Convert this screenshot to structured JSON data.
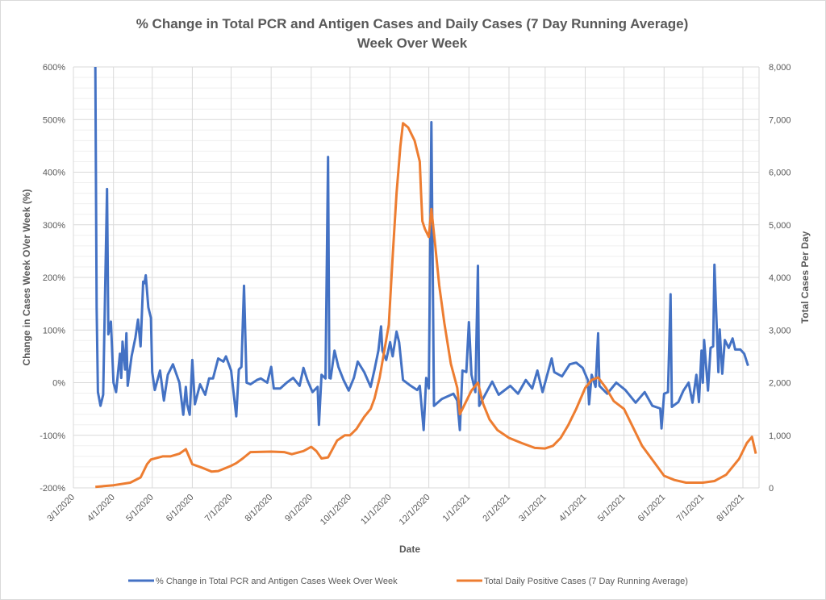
{
  "chart_data": {
    "type": "line",
    "title": "% Change in Total PCR and Antigen Cases and Daily Cases (7 Day Running Average)",
    "subtitle": "Week Over Week",
    "xlabel": "Date",
    "ylabel_left": "Change in Cases Week OVer Week (%)",
    "ylabel_right": "Total Cases Per Day",
    "x_ticks": [
      "3/1/2020",
      "4/1/2020",
      "5/1/2020",
      "6/1/2020",
      "7/1/2020",
      "8/1/2020",
      "9/1/2020",
      "10/1/2020",
      "11/1/2020",
      "12/1/2020",
      "1/1/2021",
      "2/1/2021",
      "3/1/2021",
      "4/1/2021",
      "5/1/2021",
      "6/1/2021",
      "7/1/2021",
      "8/1/2021"
    ],
    "xlim": [
      "3/1/2020",
      "8/12/2021"
    ],
    "ylim_left": [
      -200,
      600
    ],
    "ylim_right": [
      0,
      8000
    ],
    "y_ticks_left": [
      "-200%",
      "-100%",
      "0%",
      "100%",
      "200%",
      "300%",
      "400%",
      "500%",
      "600%"
    ],
    "y_ticks_right": [
      "0",
      "1,000",
      "2,000",
      "3,000",
      "4,000",
      "5,000",
      "6,000",
      "7,000",
      "8,000"
    ],
    "grid": true,
    "legend_position": "bottom",
    "series": [
      {
        "name": "% Change in Total PCR and Antigen Cases Week Over Week",
        "axis": "left",
        "color": "#4472C4",
        "points": [
          [
            "3/18/2020",
            600
          ],
          [
            "3/19/2020",
            143
          ],
          [
            "3/20/2020",
            -18
          ],
          [
            "3/22/2020",
            -44
          ],
          [
            "3/24/2020",
            -23
          ],
          [
            "3/27/2020",
            368
          ],
          [
            "3/28/2020",
            92
          ],
          [
            "3/30/2020",
            116
          ],
          [
            "4/1/2020",
            0
          ],
          [
            "4/3/2020",
            -18
          ],
          [
            "4/6/2020",
            55
          ],
          [
            "4/7/2020",
            9
          ],
          [
            "4/8/2020",
            78
          ],
          [
            "4/10/2020",
            25
          ],
          [
            "4/11/2020",
            94
          ],
          [
            "4/12/2020",
            -6
          ],
          [
            "4/15/2020",
            50
          ],
          [
            "4/18/2020",
            86
          ],
          [
            "4/20/2020",
            120
          ],
          [
            "4/22/2020",
            69
          ],
          [
            "4/24/2020",
            192
          ],
          [
            "4/25/2020",
            189
          ],
          [
            "4/26/2020",
            204
          ],
          [
            "4/28/2020",
            143
          ],
          [
            "4/30/2020",
            123
          ],
          [
            "5/1/2020",
            20
          ],
          [
            "5/3/2020",
            -14
          ],
          [
            "5/7/2020",
            23
          ],
          [
            "5/10/2020",
            -34
          ],
          [
            "5/13/2020",
            15
          ],
          [
            "5/17/2020",
            35
          ],
          [
            "5/22/2020",
            0
          ],
          [
            "5/25/2020",
            -61
          ],
          [
            "5/27/2020",
            -8
          ],
          [
            "5/28/2020",
            -41
          ],
          [
            "5/30/2020",
            -61
          ],
          [
            "6/1/2020",
            43
          ],
          [
            "6/3/2020",
            -41
          ],
          [
            "6/7/2020",
            -3
          ],
          [
            "6/11/2020",
            -23
          ],
          [
            "6/14/2020",
            8
          ],
          [
            "6/17/2020",
            8
          ],
          [
            "6/21/2020",
            46
          ],
          [
            "6/25/2020",
            40
          ],
          [
            "6/27/2020",
            50
          ],
          [
            "7/1/2020",
            23
          ],
          [
            "7/5/2020",
            -64
          ],
          [
            "7/7/2020",
            25
          ],
          [
            "7/9/2020",
            30
          ],
          [
            "7/11/2020",
            184
          ],
          [
            "7/13/2020",
            0
          ],
          [
            "7/16/2020",
            -3
          ],
          [
            "7/21/2020",
            5
          ],
          [
            "7/24/2020",
            8
          ],
          [
            "7/29/2020",
            0
          ],
          [
            "8/1/2020",
            30
          ],
          [
            "8/3/2020",
            -11
          ],
          [
            "8/8/2020",
            -11
          ],
          [
            "8/13/2020",
            0
          ],
          [
            "8/18/2020",
            9
          ],
          [
            "8/23/2020",
            -6
          ],
          [
            "8/26/2020",
            28
          ],
          [
            "8/29/2020",
            5
          ],
          [
            "9/2/2020",
            -18
          ],
          [
            "9/6/2020",
            -8
          ],
          [
            "9/7/2020",
            -80
          ],
          [
            "9/9/2020",
            15
          ],
          [
            "9/12/2020",
            8
          ],
          [
            "9/14/2020",
            429
          ],
          [
            "9/15/2020",
            9
          ],
          [
            "9/16/2020",
            8
          ],
          [
            "9/19/2020",
            61
          ],
          [
            "9/22/2020",
            30
          ],
          [
            "9/26/2020",
            5
          ],
          [
            "9/30/2020",
            -15
          ],
          [
            "10/4/2020",
            9
          ],
          [
            "10/7/2020",
            40
          ],
          [
            "10/12/2020",
            20
          ],
          [
            "10/17/2020",
            -8
          ],
          [
            "10/20/2020",
            25
          ],
          [
            "10/23/2020",
            61
          ],
          [
            "10/25/2020",
            107
          ],
          [
            "10/26/2020",
            61
          ],
          [
            "10/29/2020",
            43
          ],
          [
            "11/1/2020",
            77
          ],
          [
            "11/3/2020",
            50
          ],
          [
            "11/6/2020",
            97
          ],
          [
            "11/8/2020",
            77
          ],
          [
            "11/11/2020",
            5
          ],
          [
            "11/17/2020",
            -6
          ],
          [
            "11/22/2020",
            -14
          ],
          [
            "11/24/2020",
            -6
          ],
          [
            "11/27/2020",
            -90
          ],
          [
            "11/29/2020",
            9
          ],
          [
            "12/1/2020",
            -11
          ],
          [
            "12/3/2020",
            495
          ],
          [
            "12/5/2020",
            -44
          ],
          [
            "12/11/2020",
            -31
          ],
          [
            "12/20/2020",
            -21
          ],
          [
            "12/23/2020",
            -34
          ],
          [
            "12/25/2020",
            -90
          ],
          [
            "12/27/2020",
            23
          ],
          [
            "12/30/2020",
            20
          ],
          [
            "1/1/2021",
            115
          ],
          [
            "1/3/2021",
            15
          ],
          [
            "1/6/2021",
            -18
          ],
          [
            "1/8/2021",
            222
          ],
          [
            "1/9/2021",
            -44
          ],
          [
            "1/14/2021",
            -21
          ],
          [
            "1/19/2021",
            2
          ],
          [
            "1/24/2021",
            -23
          ],
          [
            "2/2/2021",
            -6
          ],
          [
            "2/8/2021",
            -21
          ],
          [
            "2/14/2021",
            5
          ],
          [
            "2/19/2021",
            -11
          ],
          [
            "2/23/2021",
            23
          ],
          [
            "2/27/2021",
            -18
          ],
          [
            "3/6/2021",
            46
          ],
          [
            "3/8/2021",
            20
          ],
          [
            "3/14/2021",
            12
          ],
          [
            "3/20/2021",
            35
          ],
          [
            "3/25/2021",
            38
          ],
          [
            "3/30/2021",
            28
          ],
          [
            "4/3/2021",
            5
          ],
          [
            "4/4/2021",
            -41
          ],
          [
            "4/6/2021",
            15
          ],
          [
            "4/9/2021",
            -8
          ],
          [
            "4/11/2021",
            94
          ],
          [
            "4/12/2021",
            -6
          ],
          [
            "4/18/2021",
            -21
          ],
          [
            "4/25/2021",
            0
          ],
          [
            "5/2/2021",
            -14
          ],
          [
            "5/10/2021",
            -38
          ],
          [
            "5/17/2021",
            -18
          ],
          [
            "5/23/2021",
            -44
          ],
          [
            "5/29/2021",
            -49
          ],
          [
            "5/30/2021",
            -87
          ],
          [
            "6/1/2021",
            -21
          ],
          [
            "6/4/2021",
            -18
          ],
          [
            "6/6/2021",
            168
          ],
          [
            "6/7/2021",
            -46
          ],
          [
            "6/12/2021",
            -37
          ],
          [
            "6/16/2021",
            -15
          ],
          [
            "6/20/2021",
            0
          ],
          [
            "6/23/2021",
            -38
          ],
          [
            "6/26/2021",
            15
          ],
          [
            "6/28/2021",
            -37
          ],
          [
            "6/30/2021",
            61
          ],
          [
            "7/1/2021",
            0
          ],
          [
            "7/2/2021",
            81
          ],
          [
            "7/5/2021",
            -15
          ],
          [
            "7/7/2021",
            66
          ],
          [
            "7/9/2021",
            69
          ],
          [
            "7/10/2021",
            224
          ],
          [
            "7/13/2021",
            20
          ],
          [
            "7/14/2021",
            101
          ],
          [
            "7/16/2021",
            17
          ],
          [
            "7/18/2021",
            81
          ],
          [
            "7/21/2021",
            66
          ],
          [
            "7/24/2021",
            84
          ],
          [
            "7/26/2021",
            63
          ],
          [
            "7/30/2021",
            63
          ],
          [
            "8/2/2021",
            55
          ],
          [
            "8/5/2021",
            32
          ]
        ]
      },
      {
        "name": "Total Daily Positive Cases (7 Day Running Average)",
        "axis": "right",
        "color": "#ED7D31",
        "points": [
          [
            "3/18/2020",
            20
          ],
          [
            "4/1/2020",
            50
          ],
          [
            "4/14/2020",
            100
          ],
          [
            "4/22/2020",
            200
          ],
          [
            "4/27/2020",
            450
          ],
          [
            "4/30/2020",
            540
          ],
          [
            "5/9/2020",
            600
          ],
          [
            "5/15/2020",
            600
          ],
          [
            "5/22/2020",
            650
          ],
          [
            "5/27/2020",
            735
          ],
          [
            "6/1/2020",
            450
          ],
          [
            "6/9/2020",
            380
          ],
          [
            "6/16/2020",
            310
          ],
          [
            "6/21/2020",
            320
          ],
          [
            "7/1/2020",
            420
          ],
          [
            "7/5/2020",
            470
          ],
          [
            "7/10/2020",
            560
          ],
          [
            "7/16/2020",
            680
          ],
          [
            "8/1/2020",
            690
          ],
          [
            "8/11/2020",
            680
          ],
          [
            "8/17/2020",
            640
          ],
          [
            "8/26/2020",
            700
          ],
          [
            "9/1/2020",
            780
          ],
          [
            "9/5/2020",
            700
          ],
          [
            "9/9/2020",
            560
          ],
          [
            "9/14/2020",
            580
          ],
          [
            "9/21/2020",
            900
          ],
          [
            "9/27/2020",
            1000
          ],
          [
            "10/1/2020",
            1000
          ],
          [
            "10/6/2020",
            1120
          ],
          [
            "10/12/2020",
            1350
          ],
          [
            "10/17/2020",
            1500
          ],
          [
            "10/20/2020",
            1700
          ],
          [
            "10/24/2020",
            2100
          ],
          [
            "10/31/2020",
            3100
          ],
          [
            "11/3/2020",
            4400
          ],
          [
            "11/6/2020",
            5600
          ],
          [
            "11/9/2020",
            6500
          ],
          [
            "11/11/2020",
            6930
          ],
          [
            "11/15/2020",
            6850
          ],
          [
            "11/20/2020",
            6600
          ],
          [
            "11/24/2020",
            6200
          ],
          [
            "11/25/2020",
            5600
          ],
          [
            "11/26/2020",
            5070
          ],
          [
            "11/28/2020",
            4920
          ],
          [
            "12/1/2020",
            4770
          ],
          [
            "12/3/2020",
            5300
          ],
          [
            "12/6/2020",
            4600
          ],
          [
            "12/9/2020",
            3850
          ],
          [
            "12/13/2020",
            3130
          ],
          [
            "12/18/2020",
            2360
          ],
          [
            "12/23/2020",
            1900
          ],
          [
            "12/25/2020",
            1400
          ],
          [
            "12/29/2020",
            1600
          ],
          [
            "1/3/2021",
            1850
          ],
          [
            "1/8/2021",
            2000
          ],
          [
            "1/12/2021",
            1600
          ],
          [
            "1/17/2021",
            1300
          ],
          [
            "1/23/2021",
            1100
          ],
          [
            "2/1/2021",
            950
          ],
          [
            "2/11/2021",
            850
          ],
          [
            "2/21/2021",
            760
          ],
          [
            "3/1/2021",
            750
          ],
          [
            "3/7/2021",
            800
          ],
          [
            "3/13/2021",
            950
          ],
          [
            "3/19/2021",
            1200
          ],
          [
            "3/25/2021",
            1500
          ],
          [
            "4/1/2021",
            1900
          ],
          [
            "4/6/2021",
            2050
          ],
          [
            "4/11/2021",
            2100
          ],
          [
            "4/17/2021",
            1900
          ],
          [
            "4/23/2021",
            1650
          ],
          [
            "5/1/2021",
            1500
          ],
          [
            "5/7/2021",
            1200
          ],
          [
            "5/15/2021",
            800
          ],
          [
            "5/24/2021",
            500
          ],
          [
            "6/1/2021",
            230
          ],
          [
            "6/9/2021",
            150
          ],
          [
            "6/18/2021",
            100
          ],
          [
            "7/1/2021",
            100
          ],
          [
            "7/10/2021",
            130
          ],
          [
            "7/19/2021",
            250
          ],
          [
            "7/29/2021",
            550
          ],
          [
            "8/4/2021",
            850
          ],
          [
            "8/8/2021",
            970
          ],
          [
            "8/11/2021",
            650
          ]
        ]
      }
    ]
  }
}
